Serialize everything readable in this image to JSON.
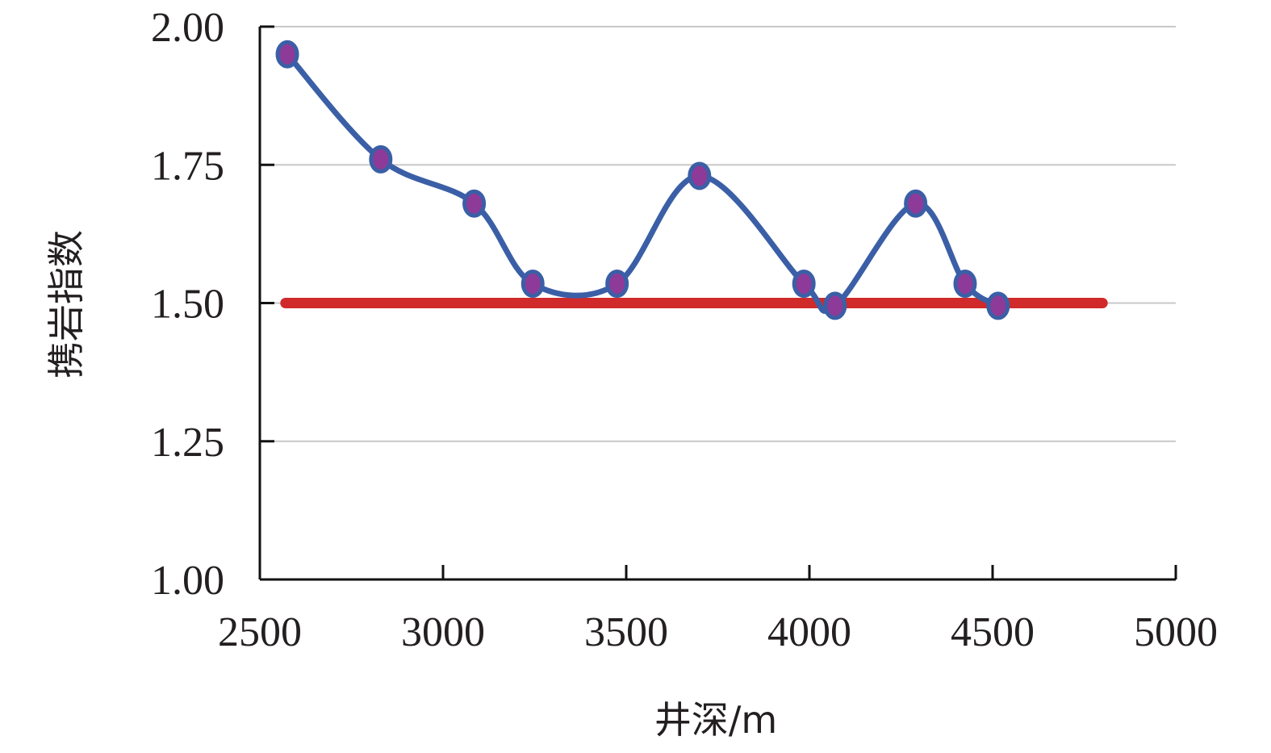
{
  "chart_data": {
    "type": "line",
    "title": "",
    "xlabel": "井深/m",
    "ylabel": "携岩指数",
    "xlim": [
      2500,
      5000
    ],
    "ylim": [
      1.0,
      2.0
    ],
    "x_ticks": [
      "2500",
      "3000",
      "3500",
      "4000",
      "4500",
      "5000"
    ],
    "y_ticks": [
      "1.00",
      "1.25",
      "1.50",
      "1.75",
      "2.00"
    ],
    "grid": "horizontal",
    "series": [
      {
        "x": [
          2575,
          2830,
          3085,
          3245,
          3475,
          3700,
          3985,
          4070,
          4290,
          4425,
          4515
        ],
        "y": [
          1.95,
          1.76,
          1.68,
          1.535,
          1.535,
          1.73,
          1.535,
          1.495,
          1.68,
          1.535,
          1.495
        ],
        "color": "#3b5fa6",
        "marker_color": "#8e3a98",
        "smooth": true
      }
    ],
    "reference_line": {
      "y": 1.5,
      "x_range": [
        2570,
        4800
      ],
      "color": "#d02a2a"
    }
  }
}
